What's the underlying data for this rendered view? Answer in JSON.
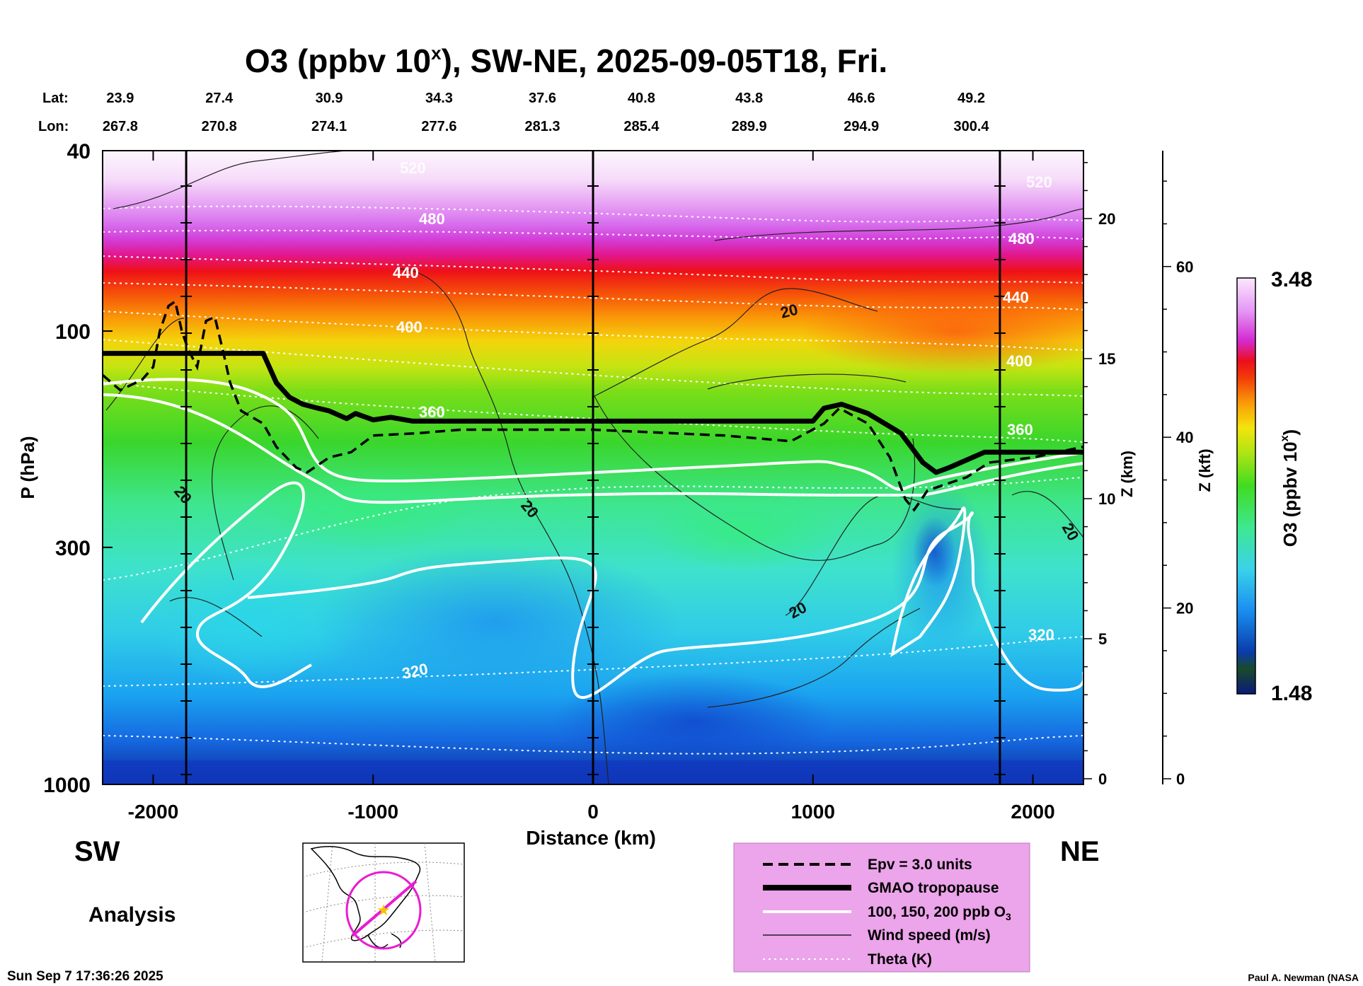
{
  "chart_data": {
    "type": "heatmap",
    "title": "O3 (ppbv 10",
    "title_sup": "x",
    "title_suffix": "), SW-NE, 2025-09-05T18, Fri.",
    "xlabel": "Distance (km)",
    "ylabel": "P (hPa)",
    "z_km_label": "Z (km)",
    "z_kft_label": "Z (kft)",
    "colorbar_label": "O3 (ppbv 10",
    "colorbar_label_sup": "x",
    "colorbar_label_suffix": ")",
    "colorbar_max": "3.48",
    "colorbar_min": "1.48",
    "colorbar_range": [
      1.48,
      3.48
    ],
    "xlim": [
      -2230,
      2230
    ],
    "ylim_hpa": [
      1000,
      40
    ],
    "x_ticks": [
      "-2000",
      "-1000",
      "0",
      "1000",
      "2000"
    ],
    "x_tick_values": [
      -2000,
      -1000,
      0,
      1000,
      2000
    ],
    "y_ticks": [
      "40",
      "100",
      "300",
      "1000"
    ],
    "y_tick_values": [
      40,
      100,
      300,
      1000
    ],
    "z_km_ticks": [
      "0",
      "5",
      "10",
      "15",
      "20"
    ],
    "z_km_values": [
      0,
      5,
      10,
      15,
      20
    ],
    "z_kft_ticks": [
      "0",
      "20",
      "40",
      "60"
    ],
    "z_kft_values": [
      0,
      20,
      40,
      60
    ],
    "lat_label": "Lat:",
    "lon_label": "Lon:",
    "lat_values": [
      "23.9",
      "27.4",
      "30.9",
      "34.3",
      "37.6",
      "40.8",
      "43.8",
      "46.6",
      "49.2"
    ],
    "lon_values": [
      "267.8",
      "270.8",
      "274.1",
      "277.6",
      "281.3",
      "285.4",
      "289.9",
      "294.9",
      "300.4"
    ],
    "latlon_distances_km": [
      -2150,
      -1700,
      -1200,
      -700,
      -230,
      220,
      710,
      1220,
      1720
    ],
    "vertical_markers_km": [
      -1850,
      0,
      1850
    ],
    "tropopause": {
      "x": [
        -2230,
        -1500,
        -1440,
        -1380,
        -1320,
        -1250,
        -1200,
        -1120,
        -1080,
        -1000,
        -920,
        -820,
        0,
        1000,
        1050,
        1130,
        1250,
        1400,
        1500,
        1560,
        1620,
        1780,
        2230
      ],
      "p": [
        112,
        112,
        130,
        140,
        145,
        148,
        150,
        156,
        152,
        157,
        155,
        158,
        158,
        158,
        148,
        145,
        152,
        168,
        195,
        205,
        200,
        185,
        185
      ]
    },
    "epv_3": {
      "x": [
        -2230,
        -2150,
        -2050,
        -2000,
        -1970,
        -1930,
        -1900,
        -1870,
        -1840,
        -1800,
        -1760,
        -1720,
        -1680,
        -1650,
        -1600,
        -1500,
        -1440,
        -1350,
        -1300,
        -1200,
        -1100,
        -1000,
        -800,
        -600,
        0,
        600,
        900,
        1050,
        1120,
        1250,
        1350,
        1420,
        1460,
        1520,
        1600,
        1700,
        1800,
        2000,
        2230
      ],
      "p": [
        125,
        135,
        128,
        120,
        100,
        88,
        86,
        100,
        110,
        120,
        95,
        93,
        112,
        130,
        150,
        160,
        180,
        200,
        205,
        190,
        185,
        170,
        168,
        165,
        165,
        170,
        175,
        160,
        148,
        160,
        190,
        235,
        248,
        225,
        218,
        210,
        195,
        190,
        180
      ]
    },
    "theta_labels": [
      "520",
      "480",
      "440",
      "400",
      "360",
      "320"
    ],
    "theta_label_values": [
      520,
      480,
      440,
      400,
      360,
      320
    ],
    "wind_labels": [
      "20"
    ],
    "legend": {
      "items": [
        "Epv = 3.0 units",
        "GMAO tropopause",
        "100, 150, 200 ppb O",
        "Wind speed (m/s)",
        "Theta (K)"
      ],
      "o3_subscript": "3",
      "background": "#eca4ea",
      "placement": "bottom-right"
    },
    "colormap": [
      "#0a1a7a",
      "#0a3caa",
      "#1266e6",
      "#1a9cf2",
      "#3ad2ea",
      "#3ee8b8",
      "#2ee070",
      "#52dc18",
      "#a8e414",
      "#e8e80e",
      "#f8c00a",
      "#fa8a08",
      "#f44a08",
      "#ec0e1c",
      "#e41a9a",
      "#d028d8",
      "#d866f0",
      "#eaa6f6",
      "#f6d8fa",
      "#fdf4fd"
    ]
  },
  "panel": {
    "sw_label": "SW",
    "ne_label": "NE",
    "analysis_label": "Analysis"
  },
  "footer": {
    "timestamp": "Sun Sep  7 17:36:26 2025",
    "credit": "Paul A. Newman (NASA"
  },
  "colors": {
    "tropopause": "#000000",
    "o3_contour": "#ffffff",
    "map_ring": "#e81bd2",
    "map_star": "#f5c400"
  }
}
